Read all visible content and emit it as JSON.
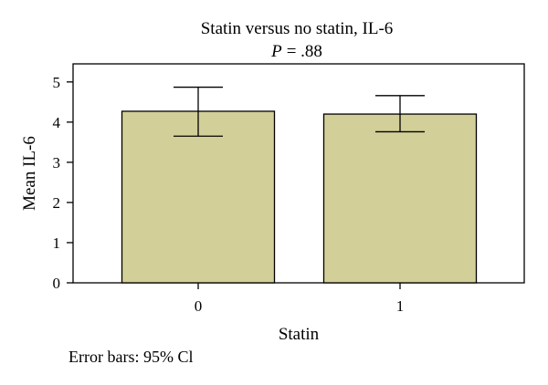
{
  "chart_data": {
    "type": "bar",
    "title": "Statin versus no statin, IL-6",
    "subtitle_p_label": "P",
    "subtitle_p_value": "= .88",
    "xlabel": "Statin",
    "ylabel": "Mean IL-6",
    "categories": [
      "0",
      "1"
    ],
    "values": [
      4.27,
      4.2
    ],
    "error_low": [
      3.65,
      3.76
    ],
    "error_high": [
      4.87,
      4.66
    ],
    "ylim": [
      0,
      5.45
    ],
    "yticks": [
      "0",
      "1",
      "2",
      "3",
      "4",
      "5"
    ],
    "bar_color": "#d3cf99",
    "grid": false,
    "footnote": "Error bars: 95% Cl"
  }
}
